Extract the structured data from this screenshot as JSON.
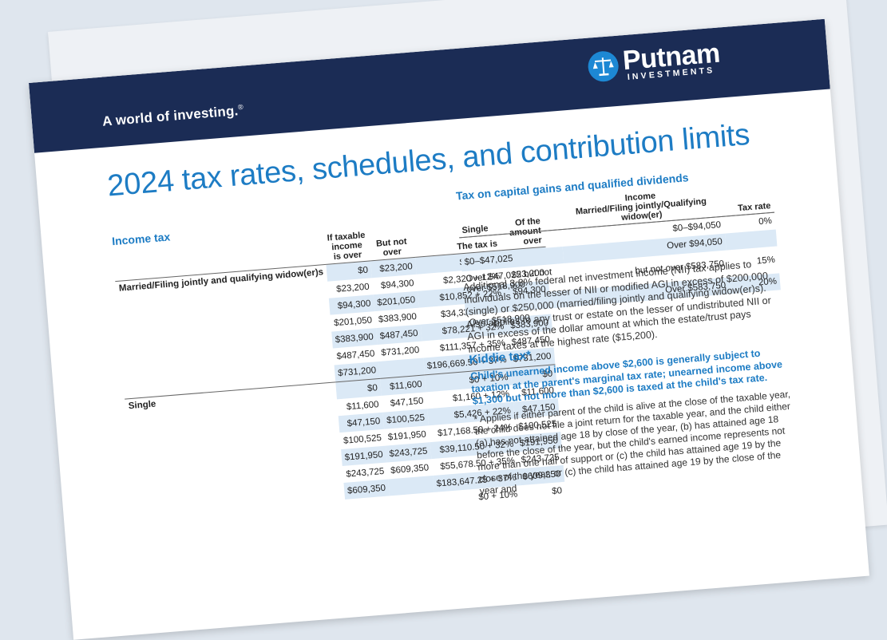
{
  "header": {
    "tagline": "A world of investing.",
    "registered": "®",
    "brand_name": "Putnam",
    "brand_sub": "INVESTMENTS"
  },
  "title": "2024 tax rates, schedules, and contribution limits",
  "income_tax": {
    "heading": "Income tax",
    "columns": [
      "If taxable income is over",
      "But not over",
      "The tax is",
      "Of the amount over"
    ],
    "groups": [
      {
        "status": "Married/Filing jointly and qualifying widow(er)s",
        "rows": [
          [
            "$0",
            "$23,200",
            "$0 + 10%",
            "$0"
          ],
          [
            "$23,200",
            "$94,300",
            "$2,320 + 12%",
            "$23,200"
          ],
          [
            "$94,300",
            "$201,050",
            "$10,852 + 22%",
            "$94,300"
          ],
          [
            "$201,050",
            "$383,900",
            "$34,337 + 24%",
            "$201,050"
          ],
          [
            "$383,900",
            "$487,450",
            "$78,221 + 32%",
            "$383,900"
          ],
          [
            "$487,450",
            "$731,200",
            "$111,357 + 35%",
            "$487,450"
          ],
          [
            "$731,200",
            "",
            "$196,669.50 + 37%",
            "$731,200"
          ]
        ]
      },
      {
        "status": "Single",
        "rows": [
          [
            "$0",
            "$11,600",
            "$0 + 10%",
            "$0"
          ],
          [
            "$11,600",
            "$47,150",
            "$1,160 + 12%",
            "$11,600"
          ],
          [
            "$47,150",
            "$100,525",
            "$5,426 + 22%",
            "$47,150"
          ],
          [
            "$100,525",
            "$191,950",
            "$17,168.50 + 24%",
            "$100,525"
          ],
          [
            "$191,950",
            "$243,725",
            "$39,110.50 + 32%",
            "$191,950"
          ],
          [
            "$243,725",
            "$609,350",
            "$55,678.50 + 35%",
            "$243,725"
          ],
          [
            "$609,350",
            "",
            "$183,647.25 + 37%",
            "$609,350"
          ],
          [
            "",
            "",
            "$0 + 10%",
            "$0"
          ]
        ]
      }
    ]
  },
  "capital_gains": {
    "heading": "Tax on capital gains and qualified dividends",
    "col_single": "Single",
    "col_income": "Income",
    "col_married": "Married/Filing jointly/Qualifying widow(er)",
    "col_rate": "Tax rate",
    "rows": [
      {
        "single": "",
        "married": "$0–$94,050",
        "rate": "0%"
      },
      {
        "single": "$0–$47,025",
        "married": "Over $94,050",
        "rate": ""
      },
      {
        "single": "Over $47,025 but not over $518,900",
        "married": "but not over $583,750",
        "rate": "15%"
      },
      {
        "single": "",
        "married": "Over $583,750",
        "rate": "20%"
      },
      {
        "single": "Over $518,900",
        "married": "",
        "rate": ""
      }
    ]
  },
  "niit_text": "Additional 3.8% federal net investment income (NII) tax applies to individuals on the lesser of NII or modified AGI in excess of $200,000 (single) or $250,000 (married/filing jointly and qualifying widow(er)s). Also applies to any trust or estate on the lesser of undistributed NII or AGI in excess of the dollar amount at which the estate/trust pays income taxes at the highest rate ($15,200).",
  "kiddie": {
    "heading": "Kiddie tax*",
    "body": "Child's unearned income above $2,600 is generally subject to taxation at the parent's marginal tax rate; unearned income above $1,300 but not more than $2,600 is taxed at the child's tax rate.",
    "note": "* Applies if either parent of the child is alive at the close of the taxable year, the child does not file a joint return for the taxable year, and the child either (a) has not attained age 18 by close of the year, (b) has attained age 18 before the close of the year, but the child's earned income represents not more than one half of support or (c) the child has attained age 19 by the close of the year, or (c) the child has attained age 19 by the close of the year and"
  },
  "colors": {
    "navy": "#1b2c55",
    "blue": "#1d7cc4",
    "shade": "#dbe9f6"
  }
}
